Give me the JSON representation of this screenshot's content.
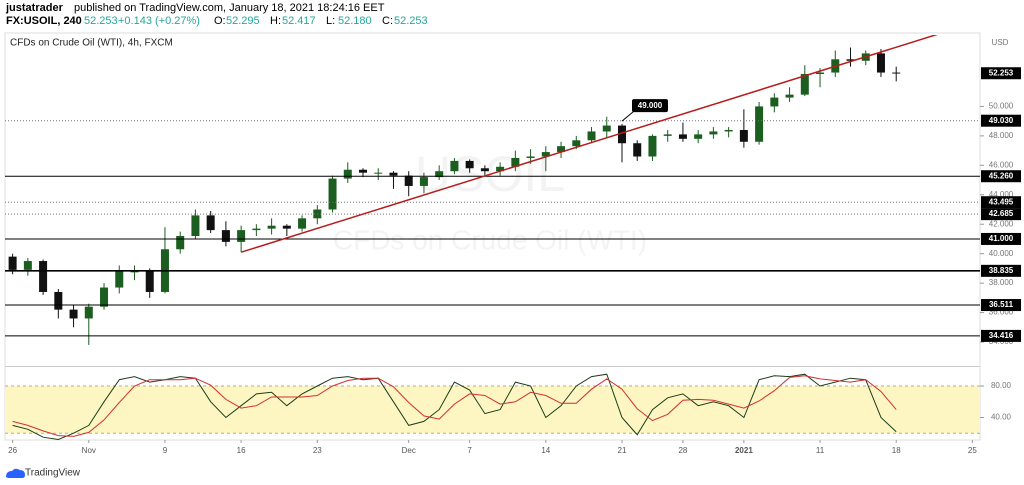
{
  "header": {
    "author": "justatrader",
    "published": "published on TradingView.com, January 18, 2021 18:24:16 EET",
    "symbol": "FX:USOIL, 240",
    "last": "52.253",
    "change": "+0.143 (+0.27%)",
    "ohlc": [
      {
        "key": "O:",
        "value": "52.295"
      },
      {
        "key": "H:",
        "value": "52.417"
      },
      {
        "key": "L:",
        "value": "52.180"
      },
      {
        "key": "C:",
        "value": "52.253"
      }
    ]
  },
  "chart_data": [
    {
      "type": "candlestick",
      "title": "CFDs on Crude Oil (WTI), 4h, FXCM",
      "watermark": "USOIL",
      "watermark_sub": "CFDs on Crude Oil (WTI)",
      "currency": "USD",
      "x": [
        0,
        1,
        2,
        3,
        4,
        5,
        6,
        7,
        8,
        9,
        10,
        11,
        12,
        13,
        14,
        15,
        16,
        17,
        18,
        19,
        20,
        21,
        22,
        23,
        24,
        25,
        26,
        27,
        28,
        29,
        30,
        31,
        32,
        33,
        34,
        35,
        36,
        37,
        38,
        39,
        40,
        41,
        42,
        43,
        44,
        45,
        46,
        47,
        48,
        49,
        50,
        51,
        52,
        53,
        54,
        55,
        56,
        57,
        58
      ],
      "open": [
        39.8,
        38.9,
        39.5,
        37.4,
        36.2,
        35.6,
        36.4,
        37.7,
        38.8,
        38.8,
        37.4,
        40.3,
        41.2,
        42.6,
        41.6,
        40.8,
        41.6,
        41.7,
        41.9,
        41.7,
        42.4,
        43.0,
        45.1,
        45.7,
        45.5,
        45.5,
        45.3,
        44.6,
        45.2,
        45.6,
        46.3,
        45.8,
        45.6,
        45.9,
        46.5,
        46.6,
        46.9,
        47.3,
        47.7,
        48.3,
        48.7,
        47.5,
        46.6,
        48.0,
        48.1,
        47.8,
        48.1,
        48.3,
        48.4,
        47.6,
        50.0,
        50.6,
        50.8,
        52.2,
        52.3,
        53.2,
        53.1,
        53.6,
        52.3
      ],
      "high": [
        40.0,
        39.7,
        39.6,
        37.6,
        36.5,
        36.6,
        38.0,
        39.2,
        39.2,
        39.0,
        41.8,
        41.5,
        43.0,
        42.9,
        42.2,
        41.9,
        42.0,
        42.4,
        42.0,
        42.6,
        43.3,
        45.3,
        46.2,
        45.8,
        45.8,
        45.6,
        45.6,
        45.5,
        46.0,
        46.5,
        46.4,
        46.0,
        46.2,
        47.0,
        47.1,
        47.3,
        47.6,
        48.0,
        48.6,
        49.3,
        48.8,
        47.7,
        48.1,
        48.4,
        48.9,
        48.4,
        48.6,
        48.6,
        49.8,
        50.3,
        50.9,
        51.3,
        52.8,
        52.6,
        53.8,
        54.0,
        53.8,
        53.9,
        52.7
      ],
      "low": [
        38.6,
        38.5,
        37.2,
        35.6,
        35.0,
        33.8,
        36.2,
        37.3,
        38.2,
        37.0,
        37.3,
        40.0,
        41.0,
        41.4,
        40.5,
        40.1,
        41.2,
        41.3,
        41.2,
        41.5,
        42.0,
        42.8,
        44.8,
        45.2,
        45.0,
        44.4,
        43.9,
        44.1,
        45.0,
        45.4,
        45.5,
        45.3,
        45.3,
        45.6,
        46.1,
        45.6,
        46.5,
        47.1,
        47.5,
        47.9,
        46.2,
        46.3,
        46.3,
        47.6,
        47.6,
        47.5,
        47.8,
        47.9,
        47.2,
        47.4,
        49.6,
        50.3,
        50.7,
        51.3,
        52.0,
        52.7,
        52.8,
        52.0,
        51.7
      ],
      "close": [
        38.9,
        39.5,
        37.4,
        36.2,
        35.6,
        36.4,
        37.7,
        38.8,
        38.8,
        37.4,
        40.3,
        41.2,
        42.6,
        41.6,
        40.8,
        41.6,
        41.7,
        41.9,
        41.7,
        42.4,
        43.0,
        45.1,
        45.7,
        45.5,
        45.5,
        45.3,
        44.6,
        45.2,
        45.6,
        46.3,
        45.8,
        45.6,
        45.9,
        46.5,
        46.6,
        46.9,
        47.3,
        47.7,
        48.3,
        48.7,
        47.5,
        46.6,
        48.0,
        48.1,
        47.8,
        48.1,
        48.3,
        48.4,
        47.6,
        50.0,
        50.6,
        50.8,
        52.2,
        52.3,
        53.2,
        53.1,
        53.6,
        52.3,
        52.253
      ],
      "up_color": "#1b5e20",
      "down_color": "#111111",
      "xlim": [
        -0.5,
        63.5
      ],
      "xticks": [
        {
          "value": 0,
          "label": "26"
        },
        {
          "value": 5,
          "label": "Nov"
        },
        {
          "value": 10,
          "label": "9"
        },
        {
          "value": 15,
          "label": "16"
        },
        {
          "value": 20,
          "label": "23"
        },
        {
          "value": 26,
          "label": "Dec"
        },
        {
          "value": 30,
          "label": "7"
        },
        {
          "value": 35,
          "label": "14"
        },
        {
          "value": 40,
          "label": "21"
        },
        {
          "value": 44,
          "label": "28"
        },
        {
          "value": 48,
          "label": "2021"
        },
        {
          "value": 53,
          "label": "11"
        },
        {
          "value": 58,
          "label": "18"
        },
        {
          "value": 63,
          "label": "25"
        }
      ],
      "ylim": [
        32.44,
        54.85
      ],
      "yticks": [
        {
          "value": 34,
          "label": "34.000"
        },
        {
          "value": 36,
          "label": "36.000"
        },
        {
          "value": 38,
          "label": "38.000"
        },
        {
          "value": 40,
          "label": "40.000"
        },
        {
          "value": 42,
          "label": "42.000"
        },
        {
          "value": 44,
          "label": "44.000"
        },
        {
          "value": 46,
          "label": "46.000"
        },
        {
          "value": 48,
          "label": "48.000"
        },
        {
          "value": 50,
          "label": "50.000"
        }
      ],
      "levels": [
        {
          "value": 49.03,
          "label": "49.030",
          "style": "dotted"
        },
        {
          "value": 45.26,
          "label": "45.260",
          "style": "solid"
        },
        {
          "value": 43.495,
          "style": "dotted"
        },
        {
          "value": 42.685,
          "style": "dotted"
        },
        {
          "value": 41,
          "label": "41.000",
          "style": "solid"
        },
        {
          "value": 38.835,
          "style": "bold"
        },
        {
          "value": 36.511,
          "style": "solid"
        },
        {
          "value": 34.416,
          "style": "solid"
        }
      ],
      "last_price": 52.253,
      "trendline": {
        "x": [
          15,
          63.5
        ],
        "y": [
          40.1,
          55.8
        ],
        "color": "#b71c1c"
      },
      "annotation": {
        "label": "49.000",
        "x": 40,
        "value": 49
      }
    },
    {
      "type": "line",
      "x": [
        0,
        1,
        2,
        3,
        4,
        5,
        6,
        7,
        8,
        9,
        10,
        11,
        12,
        13,
        14,
        15,
        16,
        17,
        18,
        19,
        20,
        21,
        22,
        23,
        24,
        25,
        26,
        27,
        28,
        29,
        30,
        31,
        32,
        33,
        34,
        35,
        36,
        37,
        38,
        39,
        40,
        41,
        42,
        43,
        44,
        45,
        46,
        47,
        48,
        49,
        50,
        51,
        52,
        53,
        54,
        55,
        56,
        57,
        58
      ],
      "series": [
        {
          "color": "#1b3d1b",
          "values": [
            30,
            25,
            15,
            12,
            20,
            30,
            60,
            88,
            92,
            85,
            88,
            92,
            90,
            60,
            40,
            55,
            70,
            72,
            55,
            70,
            80,
            90,
            92,
            88,
            90,
            60,
            30,
            35,
            50,
            85,
            75,
            45,
            50,
            85,
            80,
            40,
            55,
            80,
            92,
            95,
            40,
            18,
            50,
            65,
            70,
            55,
            60,
            55,
            40,
            88,
            93,
            92,
            95,
            80,
            85,
            90,
            88,
            40,
            22
          ]
        },
        {
          "color": "#d32f2f",
          "values": [
            35,
            30,
            23,
            17,
            16,
            21,
            37,
            59,
            80,
            88,
            88,
            88,
            90,
            81,
            63,
            52,
            55,
            66,
            66,
            66,
            68,
            80,
            87,
            90,
            90,
            79,
            59,
            42,
            38,
            57,
            70,
            68,
            57,
            60,
            72,
            68,
            58,
            58,
            76,
            89,
            76,
            51,
            36,
            44,
            62,
            63,
            62,
            57,
            52,
            61,
            74,
            91,
            93,
            89,
            87,
            85,
            88,
            73,
            50
          ]
        }
      ],
      "ylim": [
        11.4,
        102.9
      ],
      "yticks": [
        {
          "value": 40,
          "label": "40.00"
        },
        {
          "value": 80,
          "label": "80.00"
        }
      ],
      "band": [
        20,
        80
      ],
      "band_color": "#fdf6c3"
    }
  ],
  "footer": {
    "brand": "TradingView"
  }
}
